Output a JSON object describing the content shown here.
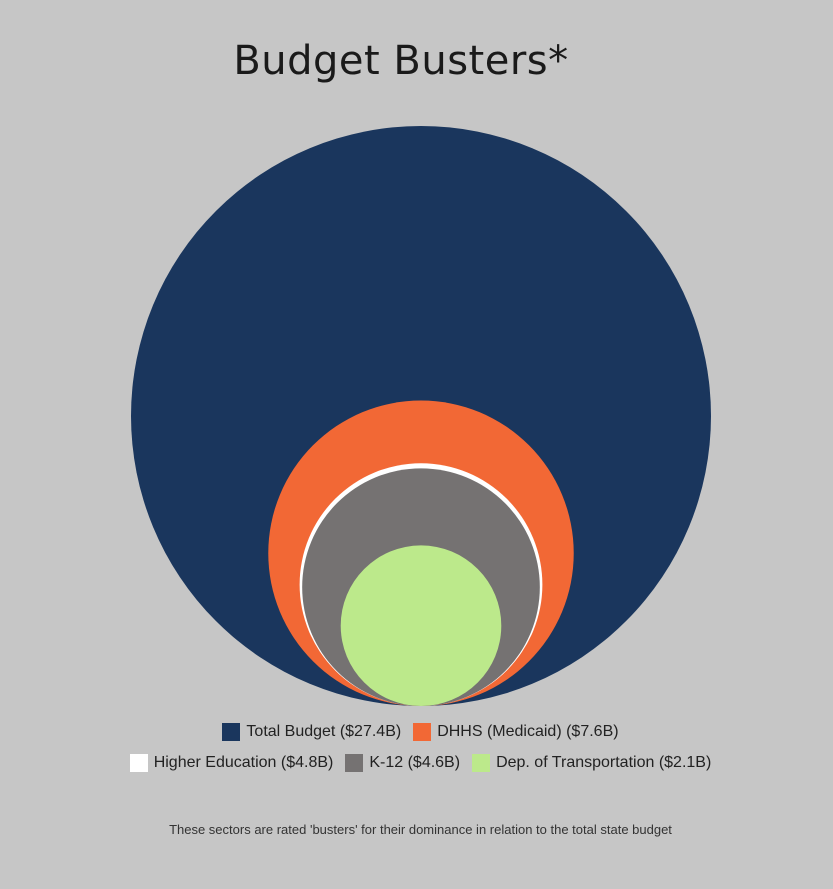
{
  "chart_data": {
    "type": "bubble",
    "title": "Budget Busters*",
    "series": [
      {
        "name": "Total Budget ($27.4B)",
        "value": 27.4,
        "color": "#1a365d"
      },
      {
        "name": "DHHS (Medicaid) ($7.6B)",
        "value": 7.6,
        "color": "#f26835"
      },
      {
        "name": "Higher Education ($4.8B)",
        "value": 4.8,
        "color": "#ffffff"
      },
      {
        "name": "K-12 ($4.6B)",
        "value": 4.6,
        "color": "#757272"
      },
      {
        "name": "Dep. of Transportation ($2.1B)",
        "value": 2.1,
        "color": "#bce98b"
      }
    ],
    "footnote": "These sectors are rated 'busters' for their dominance in relation to the total state budget"
  }
}
